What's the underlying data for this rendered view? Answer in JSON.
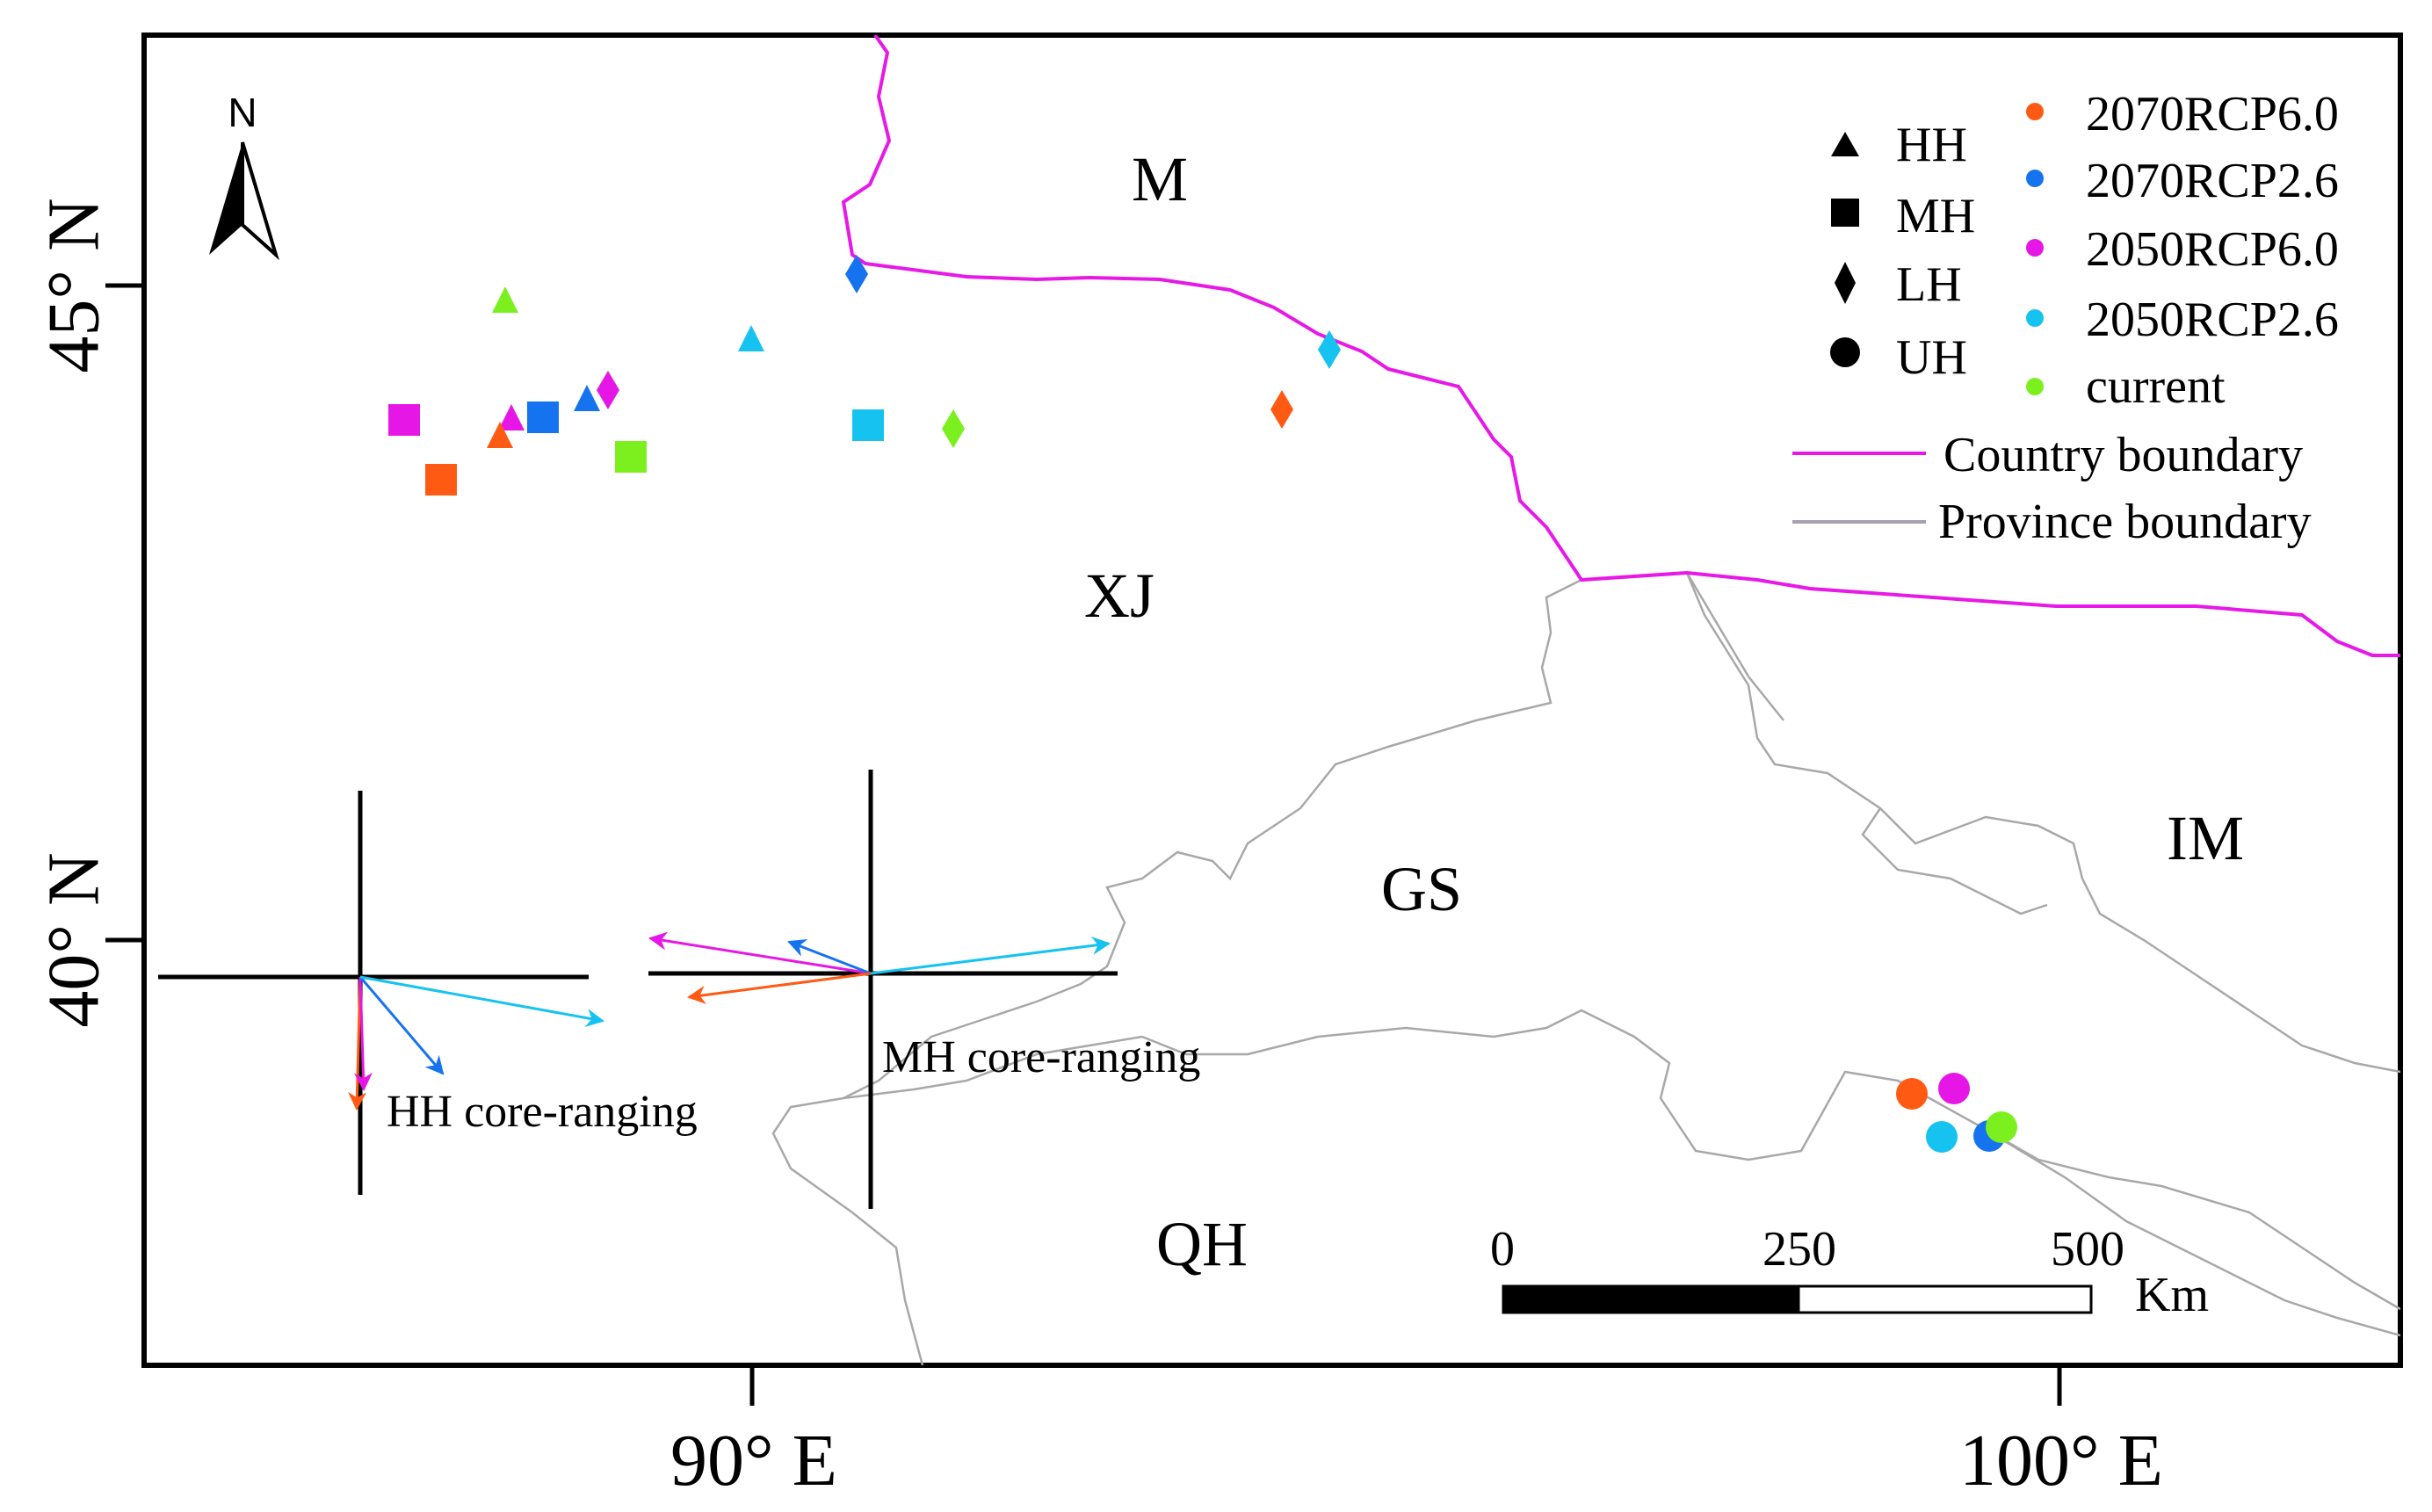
{
  "north_arrow": {
    "label": "N",
    "icon": "north-arrow-icon"
  },
  "latitude_labels": {
    "lat45": "45° N",
    "lat40": "40° N"
  },
  "longitude_labels": {
    "lon90": "90° E",
    "lon100": "100° E"
  },
  "region_labels": {
    "M": "M",
    "XJ": "XJ",
    "GS": "GS",
    "IM": "IM",
    "QH": "QH"
  },
  "legend": {
    "shapes": [
      {
        "label": "HH",
        "symbol": "triangle"
      },
      {
        "label": "MH",
        "symbol": "square"
      },
      {
        "label": "LH",
        "symbol": "diamond"
      },
      {
        "label": "UH",
        "symbol": "circle"
      }
    ],
    "scenarios": [
      {
        "label": "2070RCP6.0",
        "color": "#ff5a14"
      },
      {
        "label": "2070RCP2.6",
        "color": "#1673f0"
      },
      {
        "label": "2050RCP6.0",
        "color": "#e617e6"
      },
      {
        "label": "2050RCP2.6",
        "color": "#16c3f0"
      },
      {
        "label": "current",
        "color": "#7cf01e"
      }
    ],
    "lines": [
      {
        "label": "Country boundary",
        "color": "#e619e6"
      },
      {
        "label": "Province boundary",
        "color": "#a89fb3"
      }
    ]
  },
  "vector_diagrams": {
    "hh_label": "HH core-ranging",
    "mh_label": "MH core-ranging"
  },
  "scale_bar": {
    "t0": "0",
    "t250": "250",
    "t500": "500",
    "unit": "Km"
  }
}
